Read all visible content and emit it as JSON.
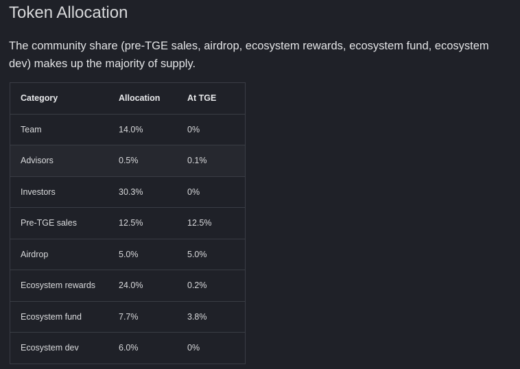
{
  "title": "Token Allocation",
  "description": "The community share (pre-TGE sales, airdrop, ecosystem rewards, ecosystem fund, ecosystem dev) makes up the majority of supply.",
  "table": {
    "header": [
      "Category",
      "Allocation",
      "At TGE"
    ],
    "rows": [
      [
        "Team",
        "14.0%",
        "0%"
      ],
      [
        "Advisors",
        "0.5%",
        "0.1%"
      ],
      [
        "Investors",
        "30.3%",
        "0%"
      ],
      [
        "Pre-TGE sales",
        "12.5%",
        "12.5%"
      ],
      [
        "Airdrop",
        "5.0%",
        "5.0%"
      ],
      [
        "Ecosystem rewards",
        "24.0%",
        "0.2%"
      ],
      [
        "Ecosystem fund",
        "7.7%",
        "3.8%"
      ],
      [
        "Ecosystem dev",
        "6.0%",
        "0%"
      ]
    ]
  }
}
